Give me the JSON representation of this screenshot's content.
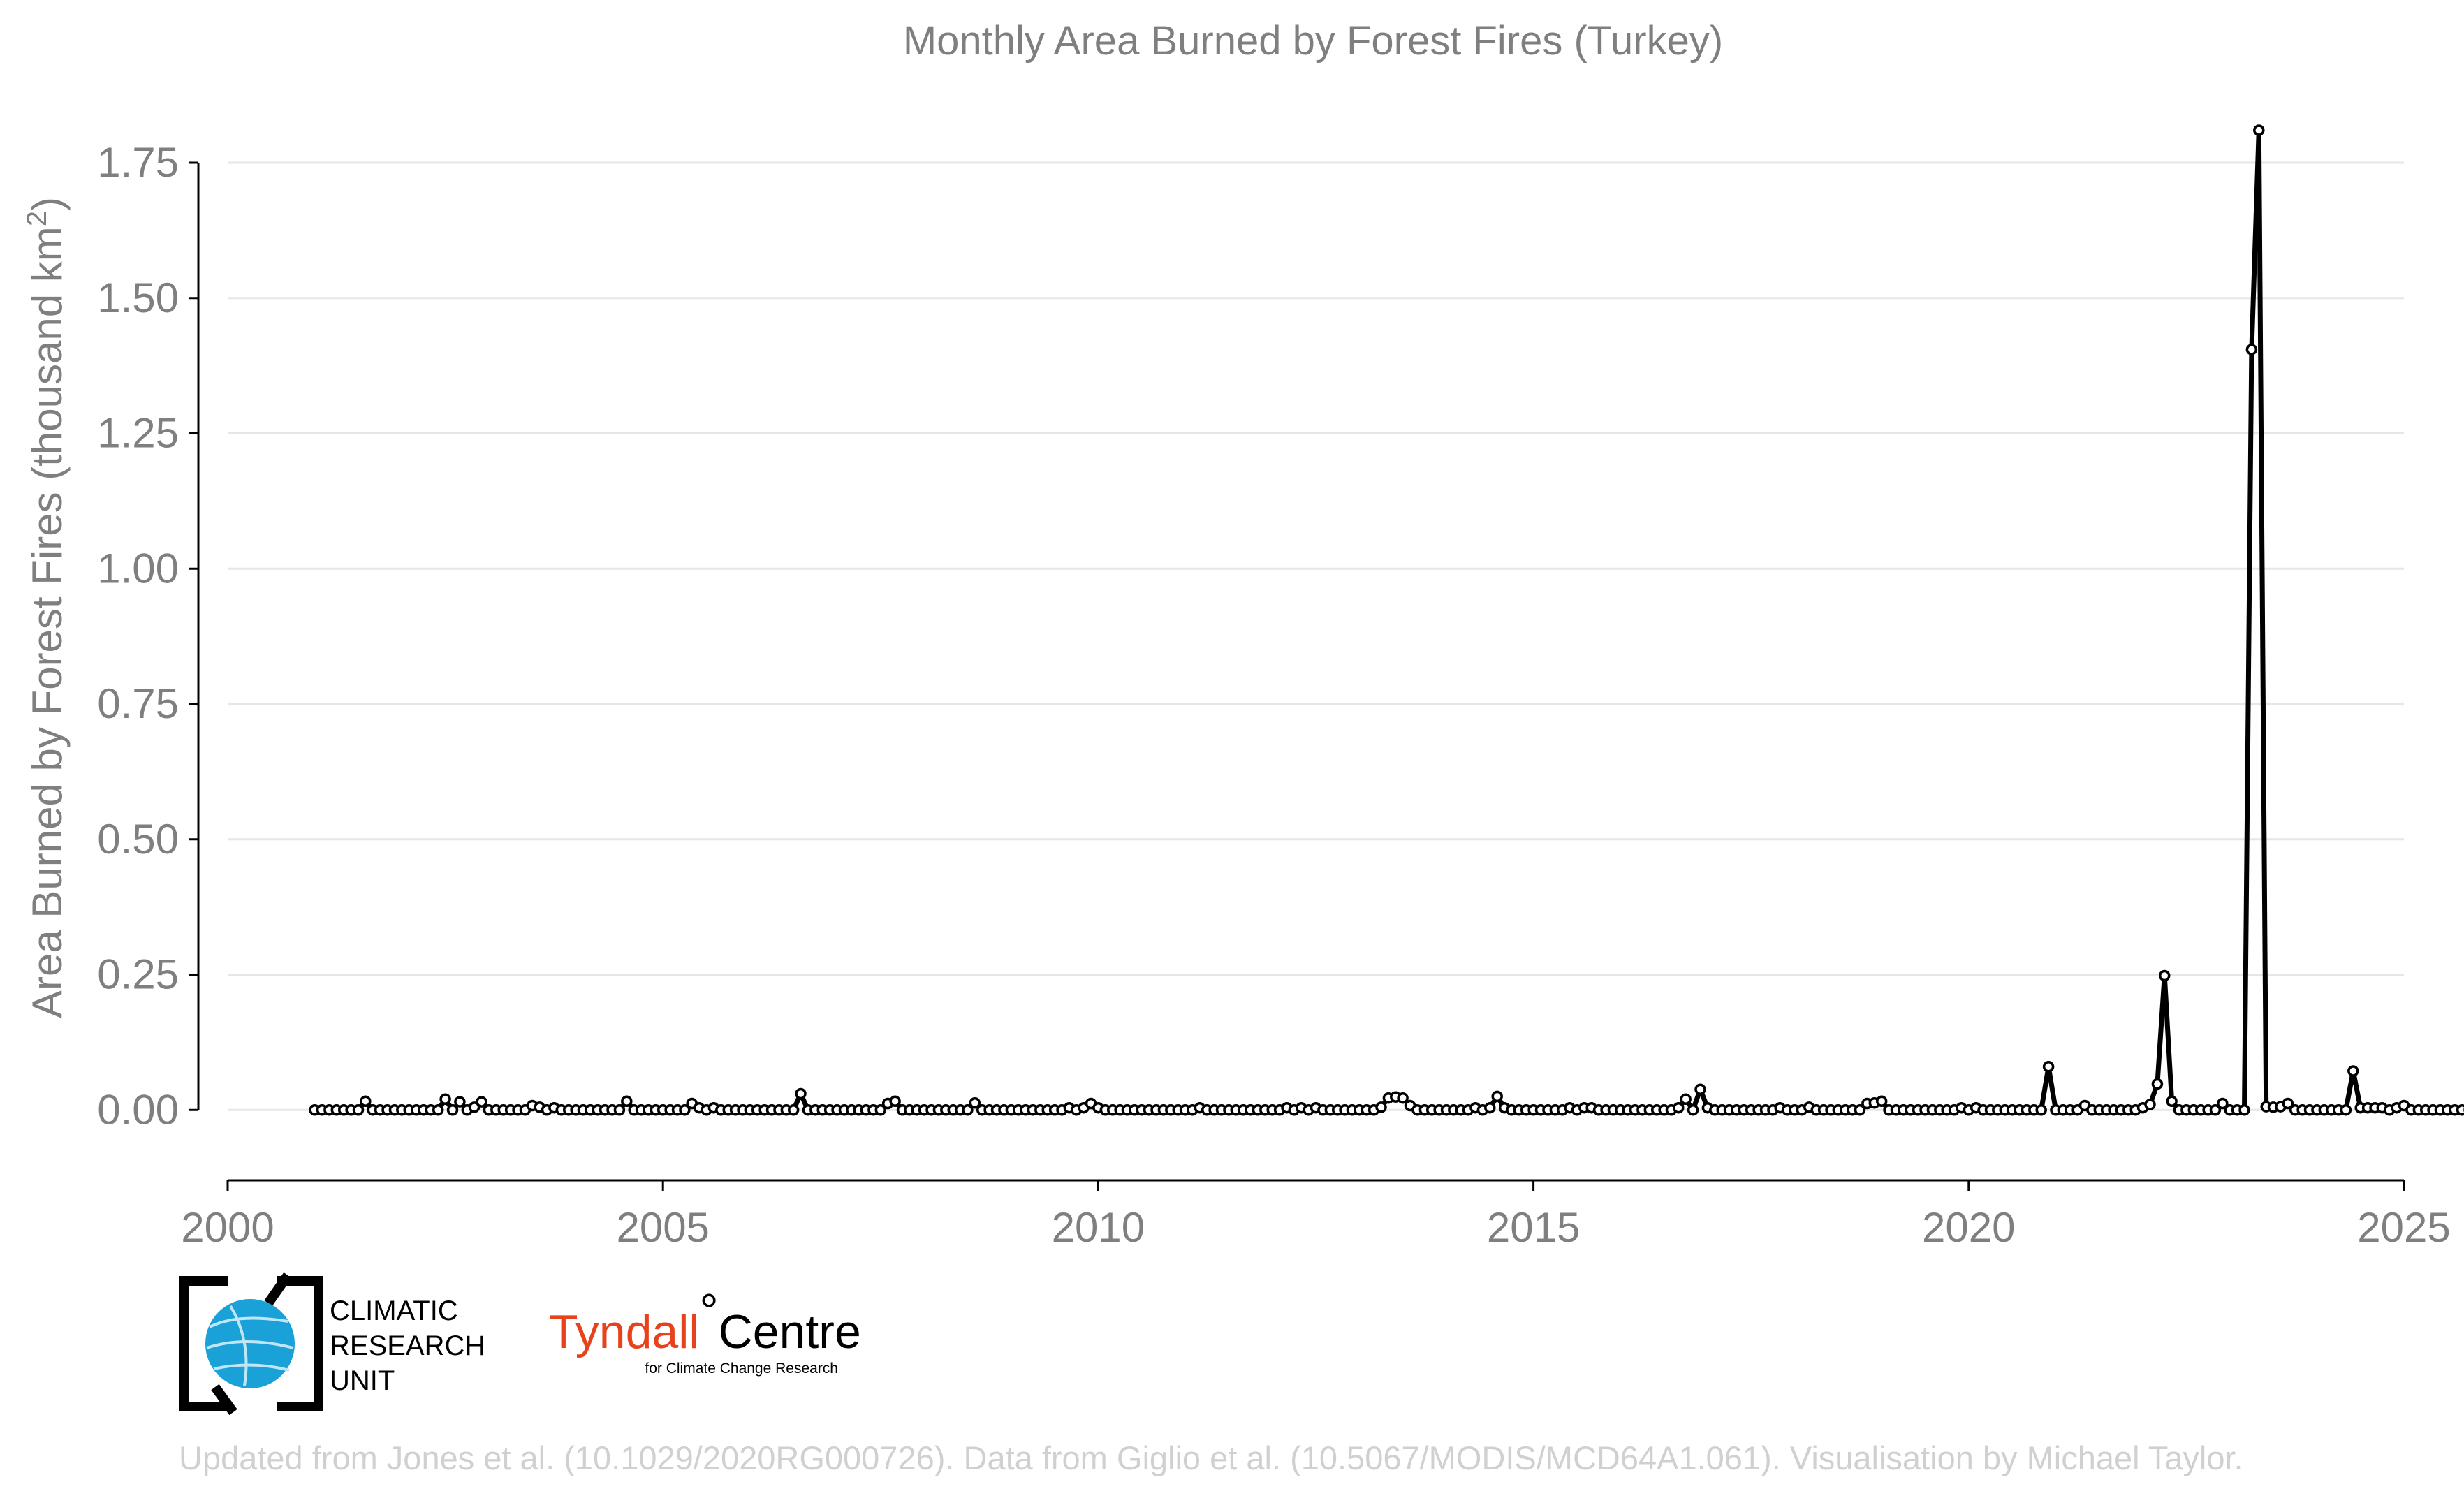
{
  "chart_data": {
    "type": "line",
    "title": "Monthly Area Burned by Forest Fires (Turkey)",
    "xlabel": "",
    "ylabel": "Area Burned by Forest Fires (thousand km²)",
    "ylabel_main": "Area Burned by Forest Fires (thousand km",
    "ylabel_sup": "2",
    "ylabel_close": ")",
    "xlim": [
      2000,
      2025
    ],
    "ylim": [
      -0.13,
      1.87
    ],
    "xticks": [
      2000,
      2005,
      2010,
      2015,
      2020,
      2025
    ],
    "yticks": [
      0.0,
      0.25,
      0.5,
      0.75,
      1.0,
      1.25,
      1.5,
      1.75
    ],
    "ytick_labels": [
      "0.00",
      "0.25",
      "0.50",
      "0.75",
      "1.00",
      "1.25",
      "1.50",
      "1.75"
    ],
    "grid": "horizontal",
    "legend": "none",
    "start": "2001-01",
    "series": [
      {
        "values": [
          0.0,
          0.0,
          0.0,
          0.0,
          0.0,
          0.0,
          0.0,
          0.016,
          0.0,
          0.0,
          0.0,
          0.0,
          0.0,
          0.0,
          0.0,
          0.0,
          0.0,
          0.0,
          0.02,
          0.0,
          0.015,
          0.0,
          0.005,
          0.015,
          0.0,
          0.0,
          0.0,
          0.0,
          0.0,
          0.0,
          0.008,
          0.005,
          0.0,
          0.004,
          0.0,
          0.0,
          0.0,
          0.0,
          0.0,
          0.0,
          0.0,
          0.0,
          0.0,
          0.016,
          0.0,
          0.0,
          0.0,
          0.0,
          0.0,
          0.0,
          0.0,
          0.0,
          0.012,
          0.004,
          0.0,
          0.004,
          0.0,
          0.0,
          0.0,
          0.0,
          0.0,
          0.0,
          0.0,
          0.0,
          0.0,
          0.0,
          0.0,
          0.03,
          0.0,
          0.0,
          0.0,
          0.0,
          0.0,
          0.0,
          0.0,
          0.0,
          0.0,
          0.0,
          0.0,
          0.012,
          0.016,
          0.0,
          0.0,
          0.0,
          0.0,
          0.0,
          0.0,
          0.0,
          0.0,
          0.0,
          0.0,
          0.013,
          0.0,
          0.0,
          0.0,
          0.0,
          0.0,
          0.0,
          0.0,
          0.0,
          0.0,
          0.0,
          0.0,
          0.0,
          0.004,
          0.0,
          0.004,
          0.012,
          0.004,
          0.0,
          0.0,
          0.0,
          0.0,
          0.0,
          0.0,
          0.0,
          0.0,
          0.0,
          0.0,
          0.0,
          0.0,
          0.0,
          0.004,
          0.0,
          0.0,
          0.0,
          0.0,
          0.0,
          0.0,
          0.0,
          0.0,
          0.0,
          0.0,
          0.0,
          0.004,
          0.0,
          0.004,
          0.0,
          0.004,
          0.0,
          0.0,
          0.0,
          0.0,
          0.0,
          0.0,
          0.0,
          0.0,
          0.005,
          0.022,
          0.024,
          0.022,
          0.008,
          0.0,
          0.0,
          0.0,
          0.0,
          0.0,
          0.0,
          0.0,
          0.0,
          0.004,
          0.0,
          0.004,
          0.025,
          0.004,
          0.0,
          0.0,
          0.0,
          0.0,
          0.0,
          0.0,
          0.0,
          0.0,
          0.004,
          0.0,
          0.004,
          0.004,
          0.0,
          0.0,
          0.0,
          0.0,
          0.0,
          0.0,
          0.0,
          0.0,
          0.0,
          0.0,
          0.0,
          0.004,
          0.02,
          0.0,
          0.038,
          0.004,
          0.0,
          0.0,
          0.0,
          0.0,
          0.0,
          0.0,
          0.0,
          0.0,
          0.0,
          0.004,
          0.0,
          0.0,
          0.0,
          0.005,
          0.0,
          0.0,
          0.0,
          0.0,
          0.0,
          0.0,
          0.0,
          0.012,
          0.013,
          0.016,
          0.0,
          0.0,
          0.0,
          0.0,
          0.0,
          0.0,
          0.0,
          0.0,
          0.0,
          0.0,
          0.004,
          0.0,
          0.004,
          0.0,
          0.0,
          0.0,
          0.0,
          0.0,
          0.0,
          0.0,
          0.0,
          0.0,
          0.08,
          0.0,
          0.0,
          0.0,
          0.0,
          0.008,
          0.0,
          0.0,
          0.0,
          0.0,
          0.0,
          0.0,
          0.0,
          0.004,
          0.01,
          0.048,
          0.248,
          0.016,
          0.0,
          0.0,
          0.0,
          0.0,
          0.0,
          0.0,
          0.012,
          0.0,
          0.0,
          0.0,
          1.405,
          1.81,
          0.006,
          0.005,
          0.006,
          0.012,
          0.0,
          0.0,
          0.0,
          0.0,
          0.0,
          0.0,
          0.0,
          0.0,
          0.072,
          0.004,
          0.004,
          0.004,
          0.004,
          0.0,
          0.004,
          0.008,
          0.0,
          0.0,
          0.0,
          0.0,
          0.0,
          0.0,
          0.0,
          0.0,
          0.0,
          0.0,
          0.0
        ]
      }
    ],
    "colors": {
      "line": "#000000",
      "marker_fill": "#ffffff",
      "grid": "#e6e6e6",
      "axis": "#000000"
    }
  },
  "logos": {
    "cru_line1": "CLIMATIC",
    "cru_line2": "RESEARCH",
    "cru_line3": "UNIT",
    "tyndall_name": "Tyndall",
    "tyndall_degree": "°",
    "tyndall_centre": "Centre",
    "tyndall_tagline": "for Climate Change Research"
  },
  "credit": "Updated from Jones et al. (10.1029/2020RG000726). Data from Giglio et al. (10.5067/MODIS/MCD64A1.061). Visualisation by Michael Taylor."
}
